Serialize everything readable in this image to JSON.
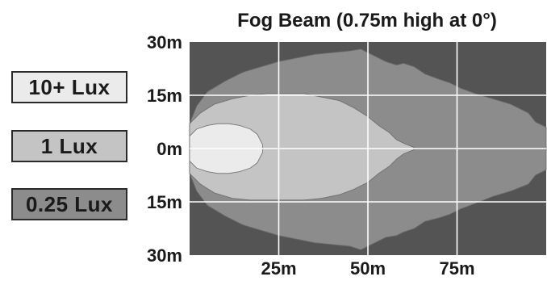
{
  "chart_data": {
    "type": "heatmap",
    "title": "Fog Beam (0.75m high at 0°)",
    "x_ticks": [
      {
        "value": 25,
        "label": "25m"
      },
      {
        "value": 50,
        "label": "50m"
      },
      {
        "value": 75,
        "label": "75m"
      }
    ],
    "y_ticks": [
      {
        "value": 30,
        "label": "30m"
      },
      {
        "value": 15,
        "label": "15m"
      },
      {
        "value": 0,
        "label": "0m"
      },
      {
        "value": -15,
        "label": "15m"
      },
      {
        "value": -30,
        "label": "30m"
      }
    ],
    "xlim": [
      0,
      100
    ],
    "ylim": [
      -30,
      30
    ],
    "grid": true,
    "legend_placement": "left",
    "zones": [
      {
        "name": "0.25 Lux",
        "color": "#8c8c8c",
        "outline_x": [
          0,
          2,
          5,
          10,
          15,
          20,
          25,
          30,
          35,
          40,
          45,
          48,
          52,
          55,
          58,
          60,
          63,
          66,
          70,
          73,
          76,
          80,
          85,
          90,
          95,
          97,
          100
        ],
        "outline_upper": [
          7,
          12,
          16,
          19,
          21.5,
          23,
          24.5,
          25.5,
          26.5,
          27,
          27.5,
          28,
          26,
          24.5,
          23.5,
          24,
          23,
          21,
          19.5,
          18.5,
          17,
          15.5,
          14,
          12.5,
          10,
          7.5,
          6
        ],
        "outline_lower": [
          -7,
          -12,
          -16,
          -19,
          -21.5,
          -23,
          -24.5,
          -25.5,
          -26.5,
          -27,
          -27.5,
          -28.5,
          -26.5,
          -25,
          -24.5,
          -23.5,
          -22.5,
          -20.5,
          -19.5,
          -18.5,
          -17,
          -15.5,
          -13.5,
          -12,
          -10,
          -7.5,
          -6
        ]
      },
      {
        "name": "1 Lux",
        "color": "#c4c4c4",
        "outline_x": [
          0,
          3,
          7,
          12,
          17,
          22,
          27,
          32,
          37,
          42,
          46,
          50,
          53,
          56,
          58,
          60,
          63
        ],
        "outline_upper": [
          7,
          10,
          12.5,
          14,
          15,
          15.5,
          15.5,
          15.5,
          14.5,
          13.5,
          11.5,
          9,
          6.5,
          4.5,
          2.5,
          1.5,
          0.3
        ],
        "outline_lower": [
          -7,
          -10,
          -12.5,
          -14,
          -14.5,
          -14.5,
          -14.5,
          -14.5,
          -14,
          -13,
          -11.5,
          -9.5,
          -7,
          -5,
          -3,
          -1.5,
          -0.3
        ]
      },
      {
        "name": "10+ Lux",
        "color": "#ebebeb",
        "outline_x": [
          0,
          2,
          5,
          8,
          11,
          14,
          17,
          19,
          20.5
        ],
        "outline_upper": [
          3.5,
          5.5,
          6.5,
          7,
          7,
          6.5,
          5.5,
          4,
          1
        ],
        "outline_lower": [
          -3.5,
          -5.5,
          -6.5,
          -7,
          -7,
          -6.5,
          -5.5,
          -4,
          -1
        ]
      }
    ]
  }
}
